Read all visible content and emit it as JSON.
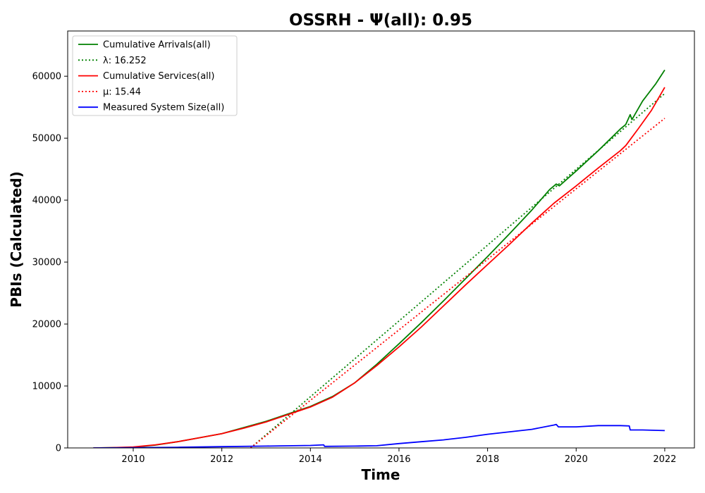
{
  "chart_data": {
    "type": "line",
    "title": "OSSRH -  Ψ(all): 0.95",
    "xlabel": "Time",
    "ylabel": "PBIs (Calculated)",
    "xlim": [
      2008.52,
      2022.67
    ],
    "ylim": [
      0,
      67300
    ],
    "x_ticks": [
      2010,
      2012,
      2014,
      2016,
      2018,
      2020,
      2022
    ],
    "y_ticks": [
      0,
      10000,
      20000,
      30000,
      40000,
      50000,
      60000
    ],
    "grid": false,
    "legend_position": "upper-left",
    "series": [
      {
        "name": "Cumulative Arrivals(all)",
        "color": "#008000",
        "style": "solid",
        "points": [
          [
            2009.1,
            0
          ],
          [
            2009.5,
            30
          ],
          [
            2010.0,
            100
          ],
          [
            2010.5,
            450
          ],
          [
            2011.0,
            1000
          ],
          [
            2011.5,
            1650
          ],
          [
            2012.0,
            2300
          ],
          [
            2012.5,
            3300
          ],
          [
            2013.0,
            4300
          ],
          [
            2013.5,
            5500
          ],
          [
            2014.0,
            6700
          ],
          [
            2014.5,
            8300
          ],
          [
            2015.0,
            10500
          ],
          [
            2015.5,
            13500
          ],
          [
            2016.0,
            16800
          ],
          [
            2016.5,
            20200
          ],
          [
            2017.0,
            23700
          ],
          [
            2017.5,
            27300
          ],
          [
            2018.0,
            30900
          ],
          [
            2018.5,
            34600
          ],
          [
            2019.0,
            38400
          ],
          [
            2019.4,
            41700
          ],
          [
            2019.55,
            42600
          ],
          [
            2019.62,
            42300
          ],
          [
            2020.0,
            44700
          ],
          [
            2020.5,
            48000
          ],
          [
            2021.0,
            51500
          ],
          [
            2021.12,
            52200
          ],
          [
            2021.22,
            53800
          ],
          [
            2021.26,
            53000
          ],
          [
            2021.5,
            56000
          ],
          [
            2021.8,
            58800
          ],
          [
            2022.0,
            61000
          ]
        ]
      },
      {
        "name": "λ: 16.252",
        "color": "#008000",
        "style": "dotted",
        "points": [
          [
            2012.65,
            0
          ],
          [
            2022.0,
            57200
          ]
        ]
      },
      {
        "name": "Cumulative Services(all)",
        "color": "#ff0000",
        "style": "solid",
        "points": [
          [
            2009.1,
            0
          ],
          [
            2009.5,
            30
          ],
          [
            2010.0,
            150
          ],
          [
            2010.5,
            500
          ],
          [
            2011.0,
            1000
          ],
          [
            2011.5,
            1650
          ],
          [
            2012.0,
            2300
          ],
          [
            2012.5,
            3200
          ],
          [
            2013.0,
            4200
          ],
          [
            2013.5,
            5400
          ],
          [
            2014.0,
            6600
          ],
          [
            2014.5,
            8200
          ],
          [
            2015.0,
            10500
          ],
          [
            2015.5,
            13300
          ],
          [
            2016.0,
            16300
          ],
          [
            2016.5,
            19500
          ],
          [
            2017.0,
            22900
          ],
          [
            2017.5,
            26300
          ],
          [
            2018.0,
            29600
          ],
          [
            2018.5,
            32900
          ],
          [
            2019.0,
            36300
          ],
          [
            2019.5,
            39500
          ],
          [
            2020.0,
            42300
          ],
          [
            2020.5,
            45200
          ],
          [
            2021.0,
            48000
          ],
          [
            2021.12,
            48800
          ],
          [
            2021.4,
            51500
          ],
          [
            2021.7,
            54500
          ],
          [
            2022.0,
            58200
          ]
        ]
      },
      {
        "name": "μ: 15.44",
        "color": "#ff0000",
        "style": "dotted",
        "points": [
          [
            2012.65,
            0
          ],
          [
            2022.0,
            53200
          ]
        ]
      },
      {
        "name": "Measured System Size(all)",
        "color": "#0000ff",
        "style": "solid",
        "points": [
          [
            2009.1,
            0
          ],
          [
            2010.0,
            50
          ],
          [
            2011.0,
            100
          ],
          [
            2012.0,
            200
          ],
          [
            2013.0,
            300
          ],
          [
            2014.0,
            400
          ],
          [
            2014.3,
            500
          ],
          [
            2014.32,
            250
          ],
          [
            2015.0,
            300
          ],
          [
            2015.5,
            350
          ],
          [
            2016.0,
            700
          ],
          [
            2016.5,
            1000
          ],
          [
            2017.0,
            1300
          ],
          [
            2017.5,
            1700
          ],
          [
            2018.0,
            2200
          ],
          [
            2018.5,
            2600
          ],
          [
            2019.0,
            3000
          ],
          [
            2019.5,
            3700
          ],
          [
            2019.55,
            3800
          ],
          [
            2019.6,
            3400
          ],
          [
            2020.0,
            3400
          ],
          [
            2020.5,
            3600
          ],
          [
            2021.0,
            3600
          ],
          [
            2021.2,
            3550
          ],
          [
            2021.22,
            2900
          ],
          [
            2021.5,
            2900
          ],
          [
            2022.0,
            2800
          ]
        ]
      }
    ]
  }
}
